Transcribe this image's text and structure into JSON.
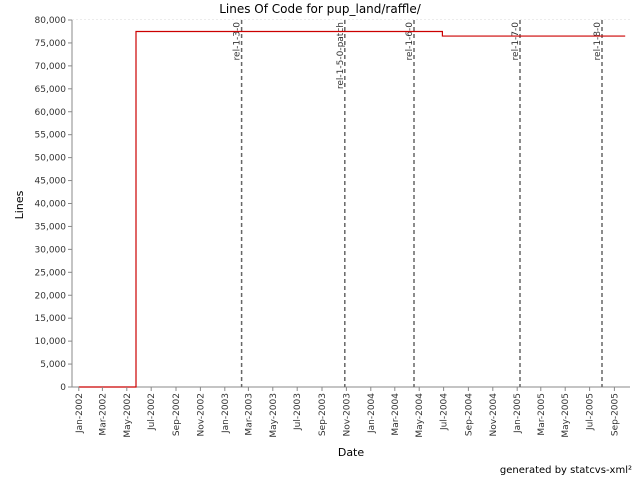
{
  "chart_data": {
    "type": "line",
    "title": "Lines Of Code for pup_land/raffle/",
    "xlabel": "Date",
    "ylabel": "Lines",
    "ylim": [
      0,
      80000
    ],
    "yticks": [
      0,
      5000,
      10000,
      15000,
      20000,
      25000,
      30000,
      35000,
      40000,
      45000,
      50000,
      55000,
      60000,
      65000,
      70000,
      75000,
      80000
    ],
    "ytick_labels": [
      "0",
      "5,000",
      "10,000",
      "15,000",
      "20,000",
      "25,000",
      "30,000",
      "35,000",
      "40,000",
      "45,000",
      "50,000",
      "55,000",
      "60,000",
      "65,000",
      "70,000",
      "75,000",
      "80,000"
    ],
    "xlim": [
      "2001-12-15",
      "2005-10-10"
    ],
    "xticks": [
      "2002-01-01",
      "2002-03-01",
      "2002-05-01",
      "2002-07-01",
      "2002-09-01",
      "2002-11-01",
      "2003-01-01",
      "2003-03-01",
      "2003-05-01",
      "2003-07-01",
      "2003-09-01",
      "2003-11-01",
      "2004-01-01",
      "2004-03-01",
      "2004-05-01",
      "2004-07-01",
      "2004-09-01",
      "2004-11-01",
      "2005-01-01",
      "2005-03-01",
      "2005-05-01",
      "2005-07-01",
      "2005-09-01"
    ],
    "xtick_labels": [
      "Jan-2002",
      "Mar-2002",
      "May-2002",
      "Jul-2002",
      "Sep-2002",
      "Nov-2002",
      "Jan-2003",
      "Mar-2003",
      "May-2003",
      "Jul-2003",
      "Sep-2003",
      "Nov-2003",
      "Jan-2004",
      "Mar-2004",
      "May-2004",
      "Jul-2004",
      "Sep-2004",
      "Nov-2004",
      "Jan-2005",
      "Mar-2005",
      "May-2005",
      "Jul-2005",
      "Sep-2005"
    ],
    "grid": true,
    "series": [
      {
        "color": "#cc0000",
        "step": true,
        "points": [
          {
            "x": "2002-01-01",
            "y": 0
          },
          {
            "x": "2002-05-24",
            "y": 77500
          },
          {
            "x": "2004-06-28",
            "y": 76500
          },
          {
            "x": "2005-09-28",
            "y": 76500
          }
        ]
      }
    ],
    "annotations": [
      {
        "label": "rel-1-3-0",
        "x": "2003-02-12"
      },
      {
        "label": "rel-1-5-0-patch",
        "x": "2003-10-28"
      },
      {
        "label": "rel-1-6-0",
        "x": "2004-04-18"
      },
      {
        "label": "rel-1-7-0",
        "x": "2005-01-08"
      },
      {
        "label": "rel-1-8-0",
        "x": "2005-08-01"
      }
    ]
  },
  "footer": "generated by statcvs-xml²"
}
